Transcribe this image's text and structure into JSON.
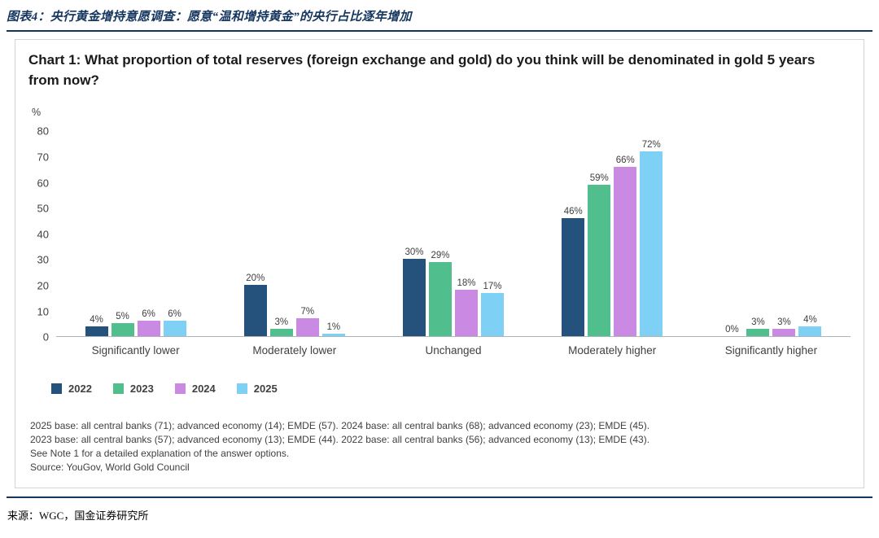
{
  "header": {
    "title": "图表4：央行黄金增持意愿调查：愿意“温和增持黄金”的央行占比逐年增加"
  },
  "chart": {
    "y_unit": "%"
  },
  "chart_data": {
    "type": "bar",
    "title": "Chart 1: What proportion of total reserves (foreign exchange and gold) do you think will be denominated in gold 5 years from now?",
    "categories": [
      "Significantly lower",
      "Moderately lower",
      "Unchanged",
      "Moderately higher",
      "Significantly higher"
    ],
    "series": [
      {
        "name": "2022",
        "color": "#25527c",
        "values": [
          4,
          20,
          30,
          46,
          0
        ]
      },
      {
        "name": "2023",
        "color": "#50bf8d",
        "values": [
          5,
          3,
          29,
          59,
          3
        ]
      },
      {
        "name": "2024",
        "color": "#ca89e2",
        "values": [
          6,
          7,
          18,
          66,
          3
        ]
      },
      {
        "name": "2025",
        "color": "#7ed0f4",
        "values": [
          6,
          1,
          17,
          72,
          4
        ]
      }
    ],
    "value_suffix": "%",
    "ylim": [
      0,
      80
    ],
    "ytick_step": 10,
    "grid": false,
    "legend_position": "bottom-left"
  },
  "footnotes": [
    "2025 base: all central banks (71); advanced economy (14); EMDE (57). 2024 base: all central banks (68); advanced economy (23); EMDE (45).",
    "2023 base: all central banks (57); advanced economy (13); EMDE (44). 2022 base: all central banks (56); advanced economy (13); EMDE (43).",
    "See Note 1 for a detailed explanation of the answer options.",
    "Source: YouGov, World Gold Council"
  ],
  "footer": {
    "source": "来源：WGC，国金证券研究所"
  }
}
